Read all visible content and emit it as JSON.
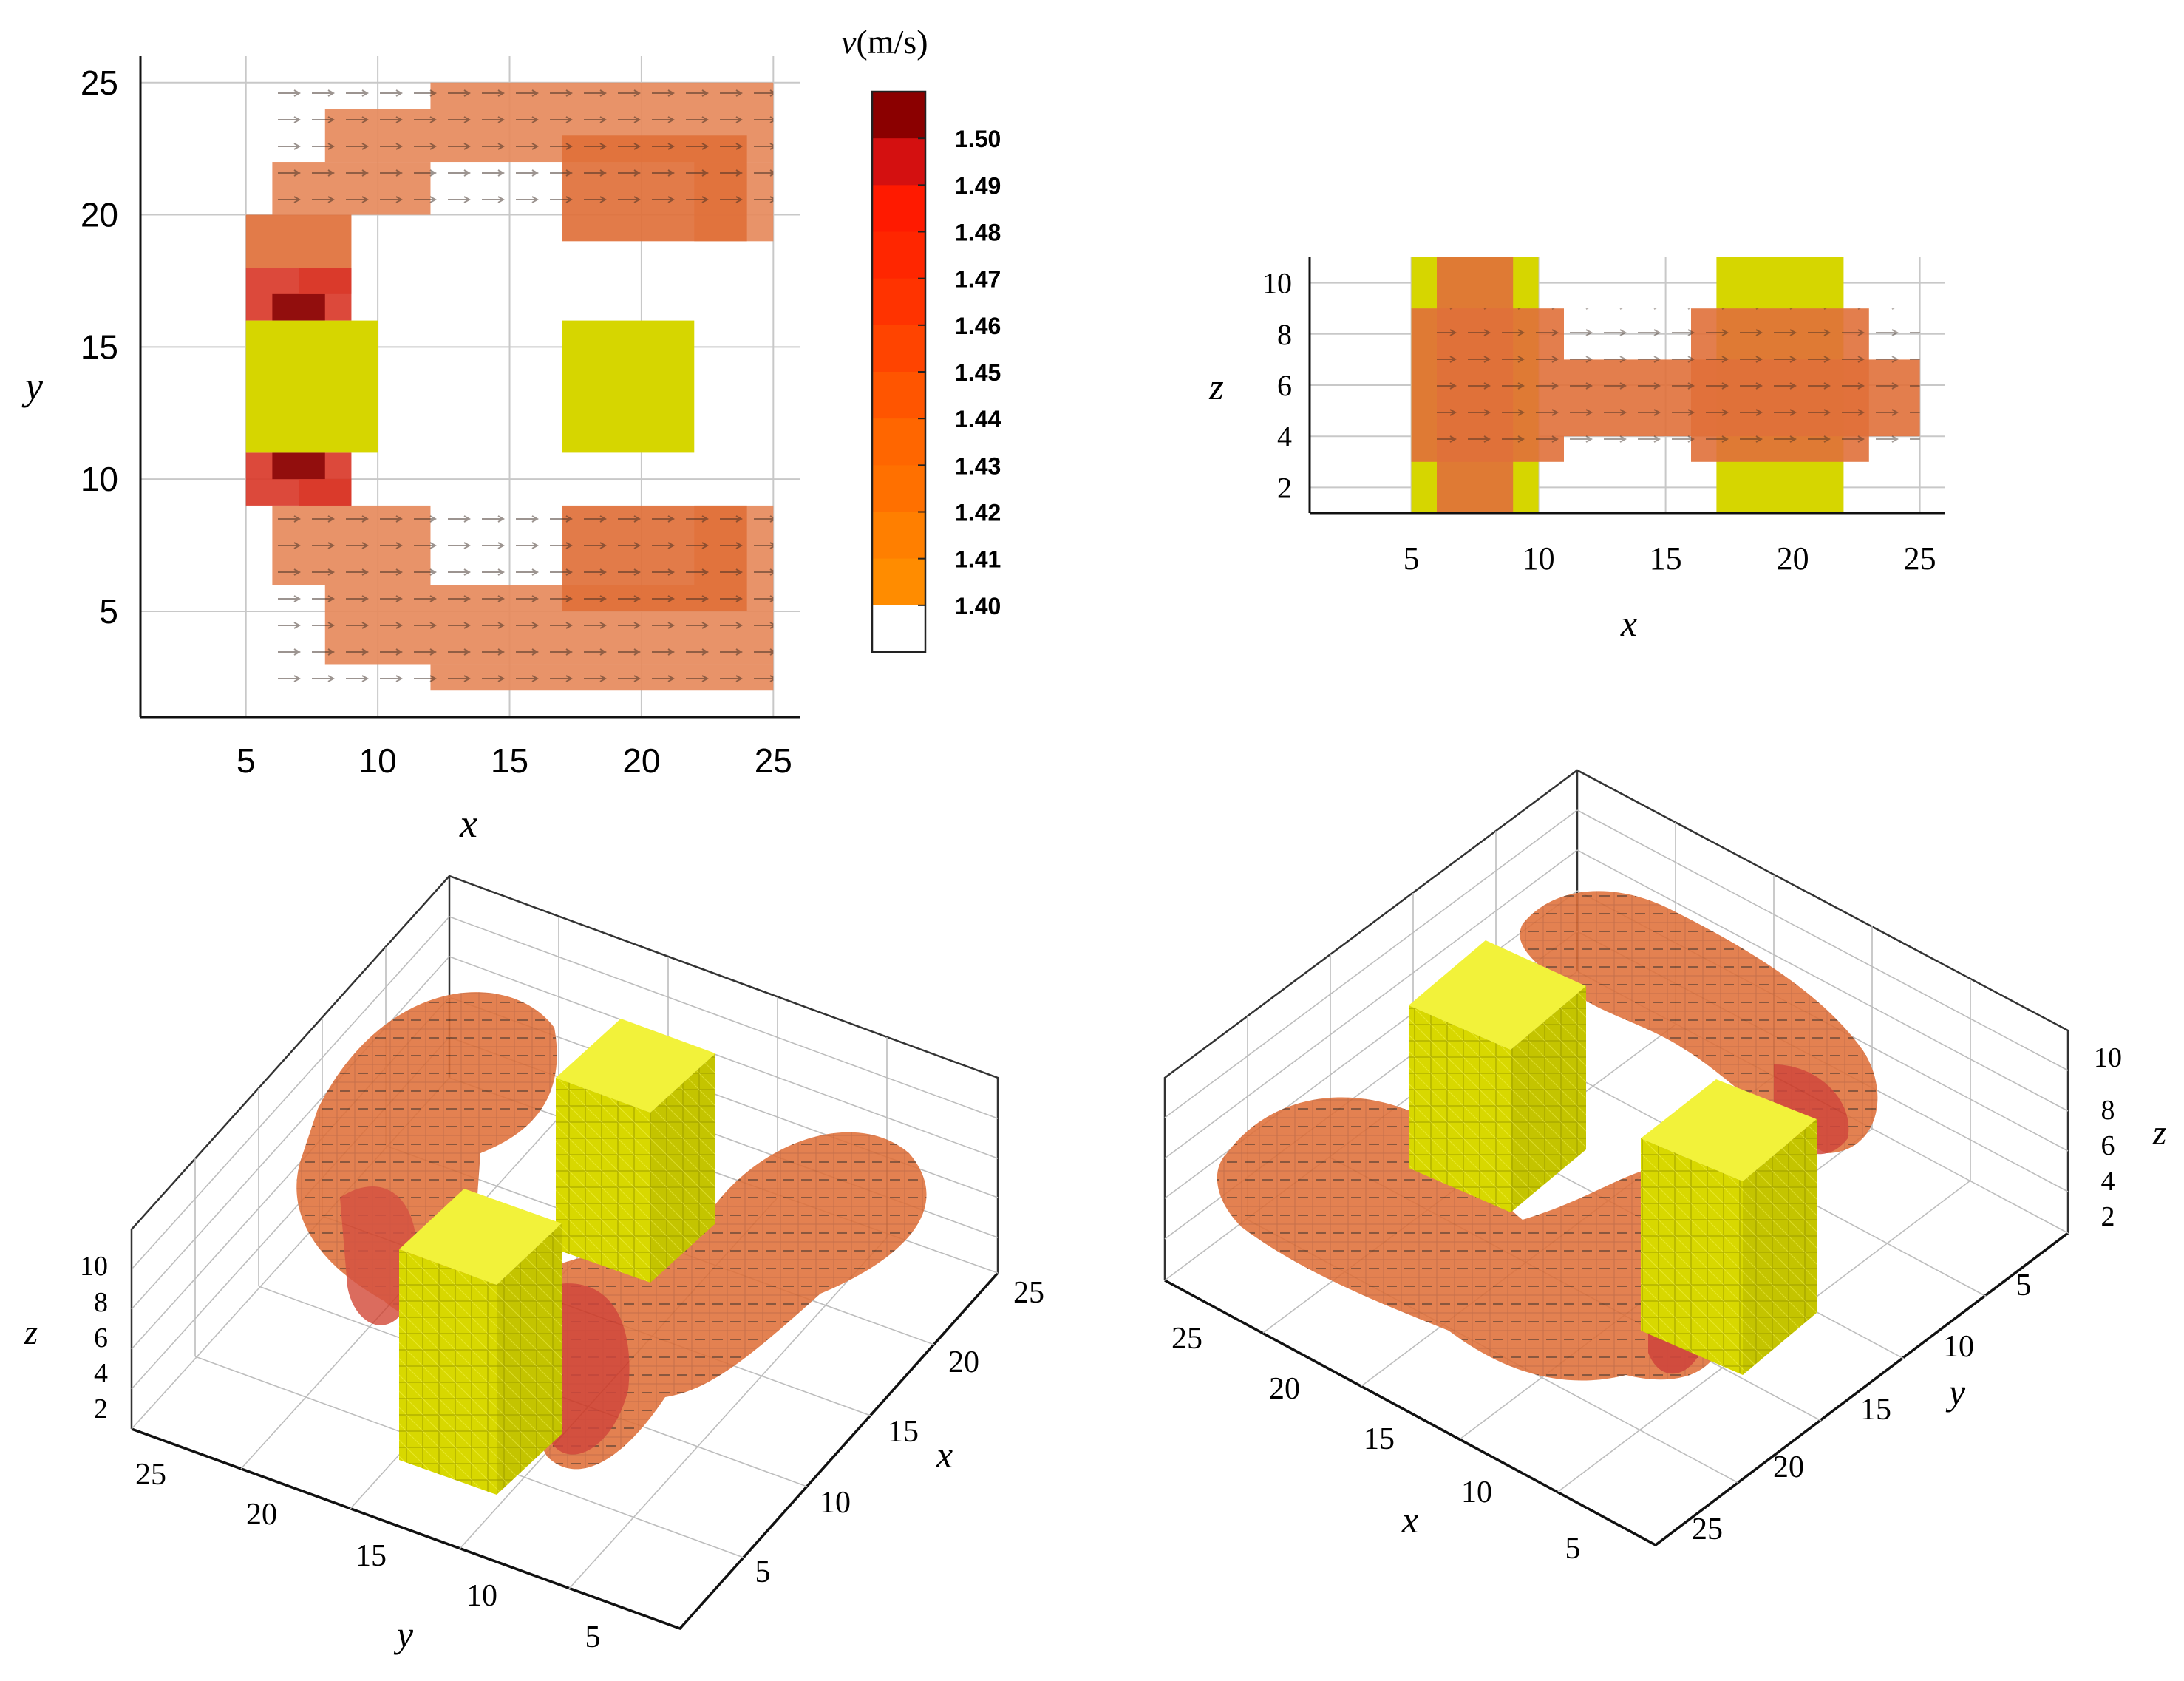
{
  "chart_data": [
    {
      "panel": "top-view",
      "type": "heatmap",
      "xlabel": "x",
      "ylabel": "y",
      "xticks": [
        5,
        10,
        15,
        20,
        25
      ],
      "yticks": [
        5,
        10,
        15,
        20,
        25
      ],
      "xlim": [
        1,
        26
      ],
      "ylim": [
        1,
        26
      ],
      "obstacles": [
        {
          "name": "building-left",
          "x": [
            5,
            10
          ],
          "y": [
            11,
            16
          ],
          "color": "#d6d600"
        },
        {
          "name": "building-right",
          "x": [
            17,
            22
          ],
          "y": [
            11,
            16
          ],
          "color": "#d6d600"
        }
      ],
      "velocity_regions": [
        {
          "x": [
            12,
            25
          ],
          "y": [
            2,
            25
          ],
          "v": 1.41,
          "note": "outer flow band"
        },
        {
          "x": [
            17,
            24
          ],
          "y": [
            18,
            24
          ],
          "v": 1.43
        },
        {
          "x": [
            17,
            24
          ],
          "y": [
            5,
            10
          ],
          "v": 1.43
        },
        {
          "x": [
            5,
            8
          ],
          "y": [
            16,
            18
          ],
          "v": 1.49
        },
        {
          "x": [
            5,
            8
          ],
          "y": [
            9,
            11
          ],
          "v": 1.49
        },
        {
          "x": [
            6,
            7
          ],
          "y": [
            16,
            17
          ],
          "v": 1.5
        },
        {
          "x": [
            6,
            7
          ],
          "y": [
            10,
            11
          ],
          "v": 1.5
        }
      ]
    },
    {
      "panel": "front-view",
      "type": "heatmap",
      "xlabel": "x",
      "ylabel": "z",
      "xticks": [
        5,
        10,
        15,
        20,
        25
      ],
      "yticks": [
        2,
        4,
        6,
        8,
        10
      ],
      "xlim": [
        1,
        26
      ],
      "ylim": [
        1,
        11
      ],
      "obstacles": [
        {
          "name": "building-left",
          "x": [
            5,
            10
          ],
          "z": [
            1,
            11
          ],
          "color": "#d6d600"
        },
        {
          "name": "building-right",
          "x": [
            17,
            22
          ],
          "z": [
            1,
            11
          ],
          "color": "#d6d600"
        }
      ],
      "velocity_regions": [
        {
          "x": [
            6,
            9
          ],
          "z": [
            1,
            11
          ],
          "v": 1.43
        },
        {
          "x": [
            5,
            11
          ],
          "z": [
            3,
            9
          ],
          "v": 1.42
        },
        {
          "x": [
            11,
            25
          ],
          "z": [
            4,
            7
          ],
          "v": 1.43
        },
        {
          "x": [
            16,
            23
          ],
          "z": [
            3,
            9
          ],
          "v": 1.42
        }
      ]
    },
    {
      "panel": "3d-view-a",
      "type": "scatter",
      "axes": {
        "x": "x",
        "y": "y",
        "z": "z"
      },
      "xticks": [
        5,
        10,
        15,
        20,
        25
      ],
      "yticks": [
        5,
        10,
        15,
        20,
        25
      ],
      "zticks": [
        2,
        4,
        6,
        8,
        10
      ]
    },
    {
      "panel": "3d-view-b",
      "type": "scatter",
      "axes": {
        "x": "x",
        "y": "y",
        "z": "z"
      },
      "xticks": [
        5,
        10,
        15,
        20,
        25
      ],
      "yticks": [
        5,
        10,
        15,
        20,
        25
      ],
      "zticks": [
        2,
        4,
        6,
        8,
        10
      ]
    }
  ],
  "colorbar": {
    "title_var": "v",
    "title_unit": "(m/s)",
    "levels": [
      "1.50",
      "1.49",
      "1.48",
      "1.47",
      "1.46",
      "1.45",
      "1.44",
      "1.43",
      "1.42",
      "1.41",
      "1.40"
    ],
    "colors": [
      "#8b0000",
      "#d41010",
      "#ff1a00",
      "#ff2600",
      "#ff3300",
      "#ff4400",
      "#ff5500",
      "#ff6600",
      "#ff7000",
      "#ff7f00",
      "#ff8c00",
      "#ffffff"
    ],
    "range": [
      1.4,
      1.51
    ]
  },
  "colors": {
    "obstacle": "#d6d600",
    "obstacle_top": "#f0f020",
    "flow_base": "#e68a5c",
    "flow_mid": "#e0703a",
    "flow_hot": "#d93a2a",
    "flow_peak": "#8b0a0a",
    "grid": "#c8c8c8"
  }
}
